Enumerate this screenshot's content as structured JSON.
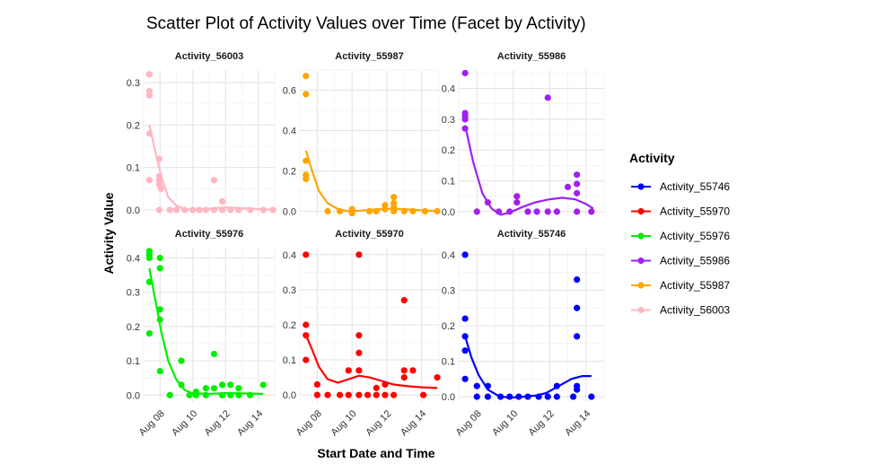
{
  "chart_data": {
    "type": "scatter",
    "title": "Scatter Plot of Activity Values over Time (Facet by Activity)",
    "xlabel": "Start Date and Time",
    "ylabel": "Activity Value",
    "x_ticks": [
      "Aug 08",
      "Aug 10",
      "Aug 12",
      "Aug 14"
    ],
    "x_range": [
      "2023-08-07",
      "2023-08-15"
    ],
    "grid": true,
    "legend": {
      "title": "Activity",
      "position": "right",
      "items": [
        {
          "label": "Activity_55746",
          "color": "#0000FF"
        },
        {
          "label": "Activity_55970",
          "color": "#FF0000"
        },
        {
          "label": "Activity_55976",
          "color": "#00EE00"
        },
        {
          "label": "Activity_55986",
          "color": "#A020F0"
        },
        {
          "label": "Activity_55987",
          "color": "#FFA500"
        },
        {
          "label": "Activity_56003",
          "color": "#FFB6C1"
        }
      ]
    },
    "facets": [
      {
        "name": "Activity_56003",
        "color": "#FFB6C1",
        "ylim": [
          -0.015,
          0.33
        ],
        "yticks": [
          0.0,
          0.1,
          0.2,
          0.3
        ],
        "points": [
          [
            7.35,
            0.32
          ],
          [
            7.35,
            0.28
          ],
          [
            7.35,
            0.27
          ],
          [
            7.35,
            0.18
          ],
          [
            7.35,
            0.07
          ],
          [
            7.95,
            0.12
          ],
          [
            7.95,
            0.08
          ],
          [
            7.95,
            0.07
          ],
          [
            7.95,
            0.06
          ],
          [
            8.05,
            0.05
          ],
          [
            7.95,
            0.0
          ],
          [
            8.6,
            0.0
          ],
          [
            9.0,
            0.0
          ],
          [
            9.5,
            0.0
          ],
          [
            10.0,
            0.0
          ],
          [
            10.4,
            0.0
          ],
          [
            10.8,
            0.0
          ],
          [
            11.3,
            0.07
          ],
          [
            11.3,
            0.0
          ],
          [
            11.8,
            0.02
          ],
          [
            11.8,
            0.0
          ],
          [
            12.3,
            0.0
          ],
          [
            12.8,
            0.0
          ],
          [
            13.5,
            0.0
          ],
          [
            14.3,
            0.0
          ],
          [
            14.9,
            0.0
          ]
        ],
        "trend": [
          [
            7.35,
            0.2
          ],
          [
            7.7,
            0.14
          ],
          [
            8.1,
            0.075
          ],
          [
            8.5,
            0.03
          ],
          [
            9.0,
            0.01
          ],
          [
            9.5,
            0.002
          ],
          [
            10.0,
            0.0
          ],
          [
            11.0,
            0.003
          ],
          [
            12.0,
            0.006
          ],
          [
            13.0,
            0.004
          ],
          [
            14.0,
            0.002
          ],
          [
            15.0,
            0.0
          ]
        ]
      },
      {
        "name": "Activity_55987",
        "color": "#FFA500",
        "ylim": [
          -0.025,
          0.7
        ],
        "yticks": [
          0.0,
          0.2,
          0.4,
          0.6
        ],
        "points": [
          [
            7.35,
            0.67
          ],
          [
            7.35,
            0.58
          ],
          [
            7.35,
            0.25
          ],
          [
            7.35,
            0.18
          ],
          [
            7.35,
            0.16
          ],
          [
            8.6,
            0.0
          ],
          [
            9.3,
            0.0
          ],
          [
            10.0,
            -0.01
          ],
          [
            10.0,
            0.01
          ],
          [
            11.0,
            0.0
          ],
          [
            11.4,
            0.0
          ],
          [
            11.9,
            0.03
          ],
          [
            11.9,
            0.01
          ],
          [
            12.4,
            0.07
          ],
          [
            12.4,
            0.04
          ],
          [
            12.4,
            0.02
          ],
          [
            12.4,
            0.0
          ],
          [
            13.0,
            0.0
          ],
          [
            13.5,
            0.0
          ],
          [
            14.2,
            0.0
          ],
          [
            14.9,
            0.0
          ]
        ],
        "trend": [
          [
            7.35,
            0.3
          ],
          [
            7.7,
            0.2
          ],
          [
            8.1,
            0.1
          ],
          [
            8.6,
            0.04
          ],
          [
            9.2,
            0.01
          ],
          [
            9.8,
            0.0
          ],
          [
            10.5,
            0.003
          ],
          [
            11.5,
            0.01
          ],
          [
            12.3,
            0.012
          ],
          [
            13.0,
            0.01
          ],
          [
            14.0,
            0.005
          ],
          [
            15.0,
            0.0
          ]
        ]
      },
      {
        "name": "Activity_55986",
        "color": "#A020F0",
        "ylim": [
          -0.015,
          0.46
        ],
        "yticks": [
          0.0,
          0.1,
          0.2,
          0.3,
          0.4
        ],
        "points": [
          [
            7.35,
            0.45
          ],
          [
            7.35,
            0.32
          ],
          [
            7.35,
            0.31
          ],
          [
            7.35,
            0.3
          ],
          [
            7.35,
            0.27
          ],
          [
            8.0,
            0.0
          ],
          [
            8.6,
            0.03
          ],
          [
            9.2,
            0.0
          ],
          [
            9.8,
            0.0
          ],
          [
            10.2,
            0.05
          ],
          [
            10.2,
            0.03
          ],
          [
            10.8,
            0.0
          ],
          [
            11.3,
            0.0
          ],
          [
            11.9,
            0.37
          ],
          [
            11.9,
            0.0
          ],
          [
            12.4,
            0.0
          ],
          [
            13.0,
            0.08
          ],
          [
            13.5,
            0.12
          ],
          [
            13.5,
            0.09
          ],
          [
            13.5,
            0.06
          ],
          [
            13.5,
            0.0
          ],
          [
            14.3,
            0.0
          ]
        ],
        "trend": [
          [
            7.35,
            0.28
          ],
          [
            7.8,
            0.16
          ],
          [
            8.3,
            0.06
          ],
          [
            8.8,
            0.01
          ],
          [
            9.3,
            -0.01
          ],
          [
            9.8,
            -0.003
          ],
          [
            10.5,
            0.015
          ],
          [
            11.2,
            0.03
          ],
          [
            12.0,
            0.04
          ],
          [
            12.7,
            0.045
          ],
          [
            13.4,
            0.04
          ],
          [
            14.0,
            0.025
          ],
          [
            14.4,
            0.01
          ]
        ]
      },
      {
        "name": "Activity_55976",
        "color": "#00EE00",
        "ylim": [
          -0.02,
          0.43
        ],
        "yticks": [
          0.0,
          0.1,
          0.2,
          0.3,
          0.4
        ],
        "points": [
          [
            7.35,
            0.42
          ],
          [
            7.35,
            0.41
          ],
          [
            7.35,
            0.4
          ],
          [
            7.35,
            0.33
          ],
          [
            7.35,
            0.18
          ],
          [
            8.0,
            0.4
          ],
          [
            8.0,
            0.37
          ],
          [
            8.0,
            0.25
          ],
          [
            8.0,
            0.22
          ],
          [
            8.0,
            0.07
          ],
          [
            8.6,
            0.0
          ],
          [
            9.3,
            0.1
          ],
          [
            9.3,
            0.03
          ],
          [
            9.8,
            0.0
          ],
          [
            10.2,
            0.01
          ],
          [
            10.2,
            0.0
          ],
          [
            10.8,
            0.02
          ],
          [
            10.8,
            0.0
          ],
          [
            11.3,
            0.12
          ],
          [
            11.3,
            0.02
          ],
          [
            11.8,
            0.03
          ],
          [
            11.8,
            0.0
          ],
          [
            12.3,
            0.03
          ],
          [
            12.3,
            0.0
          ],
          [
            12.8,
            0.02
          ],
          [
            12.8,
            0.0
          ],
          [
            13.5,
            0.0
          ],
          [
            14.3,
            0.03
          ]
        ],
        "trend": [
          [
            7.35,
            0.37
          ],
          [
            7.7,
            0.28
          ],
          [
            8.1,
            0.18
          ],
          [
            8.5,
            0.1
          ],
          [
            9.0,
            0.045
          ],
          [
            9.5,
            0.015
          ],
          [
            10.0,
            0.005
          ],
          [
            11.0,
            0.004
          ],
          [
            12.0,
            0.006
          ],
          [
            13.0,
            0.005
          ],
          [
            14.0,
            0.004
          ],
          [
            14.3,
            0.004
          ]
        ]
      },
      {
        "name": "Activity_55970",
        "color": "#FF0000",
        "ylim": [
          -0.02,
          0.42
        ],
        "yticks": [
          0.0,
          0.1,
          0.2,
          0.3,
          0.4
        ],
        "points": [
          [
            7.35,
            0.4
          ],
          [
            7.35,
            0.2
          ],
          [
            7.35,
            0.17
          ],
          [
            7.35,
            0.1
          ],
          [
            8.0,
            0.03
          ],
          [
            8.0,
            0.0
          ],
          [
            8.6,
            0.0
          ],
          [
            9.3,
            0.0
          ],
          [
            9.8,
            0.07
          ],
          [
            9.8,
            0.0
          ],
          [
            10.4,
            0.4
          ],
          [
            10.4,
            0.17
          ],
          [
            10.4,
            0.12
          ],
          [
            10.4,
            0.07
          ],
          [
            10.4,
            0.0
          ],
          [
            10.9,
            0.0
          ],
          [
            11.4,
            0.02
          ],
          [
            11.4,
            0.0
          ],
          [
            11.9,
            0.03
          ],
          [
            11.9,
            0.0
          ],
          [
            12.4,
            0.0
          ],
          [
            13.0,
            0.27
          ],
          [
            13.0,
            0.07
          ],
          [
            13.0,
            0.05
          ],
          [
            13.5,
            0.07
          ],
          [
            14.1,
            0.0
          ],
          [
            14.9,
            0.05
          ]
        ],
        "trend": [
          [
            7.35,
            0.17
          ],
          [
            7.7,
            0.13
          ],
          [
            8.1,
            0.08
          ],
          [
            8.6,
            0.045
          ],
          [
            9.2,
            0.035
          ],
          [
            9.8,
            0.045
          ],
          [
            10.4,
            0.055
          ],
          [
            11.0,
            0.05
          ],
          [
            11.7,
            0.04
          ],
          [
            12.4,
            0.03
          ],
          [
            13.2,
            0.025
          ],
          [
            14.0,
            0.022
          ],
          [
            14.9,
            0.02
          ]
        ]
      },
      {
        "name": "Activity_55746",
        "color": "#0000FF",
        "ylim": [
          -0.015,
          0.42
        ],
        "yticks": [
          0.0,
          0.1,
          0.2,
          0.3,
          0.4
        ],
        "points": [
          [
            7.35,
            0.4
          ],
          [
            7.35,
            0.22
          ],
          [
            7.35,
            0.17
          ],
          [
            7.35,
            0.13
          ],
          [
            7.35,
            0.05
          ],
          [
            8.0,
            0.03
          ],
          [
            8.0,
            0.0
          ],
          [
            8.6,
            0.03
          ],
          [
            8.6,
            0.0
          ],
          [
            9.3,
            0.0
          ],
          [
            9.8,
            0.0
          ],
          [
            10.3,
            0.0
          ],
          [
            10.8,
            0.0
          ],
          [
            11.4,
            0.0
          ],
          [
            11.9,
            0.0
          ],
          [
            12.4,
            0.03
          ],
          [
            12.4,
            0.0
          ],
          [
            13.3,
            0.0
          ],
          [
            13.5,
            0.33
          ],
          [
            13.5,
            0.25
          ],
          [
            13.5,
            0.17
          ],
          [
            13.5,
            0.03
          ],
          [
            13.5,
            0.02
          ],
          [
            14.3,
            0.0
          ]
        ],
        "trend": [
          [
            7.35,
            0.17
          ],
          [
            7.7,
            0.11
          ],
          [
            8.1,
            0.06
          ],
          [
            8.6,
            0.02
          ],
          [
            9.2,
            0.002
          ],
          [
            9.8,
            -0.003
          ],
          [
            10.5,
            0.0
          ],
          [
            11.2,
            0.003
          ],
          [
            11.8,
            0.01
          ],
          [
            12.5,
            0.03
          ],
          [
            13.2,
            0.05
          ],
          [
            13.8,
            0.058
          ],
          [
            14.3,
            0.058
          ]
        ]
      }
    ]
  }
}
